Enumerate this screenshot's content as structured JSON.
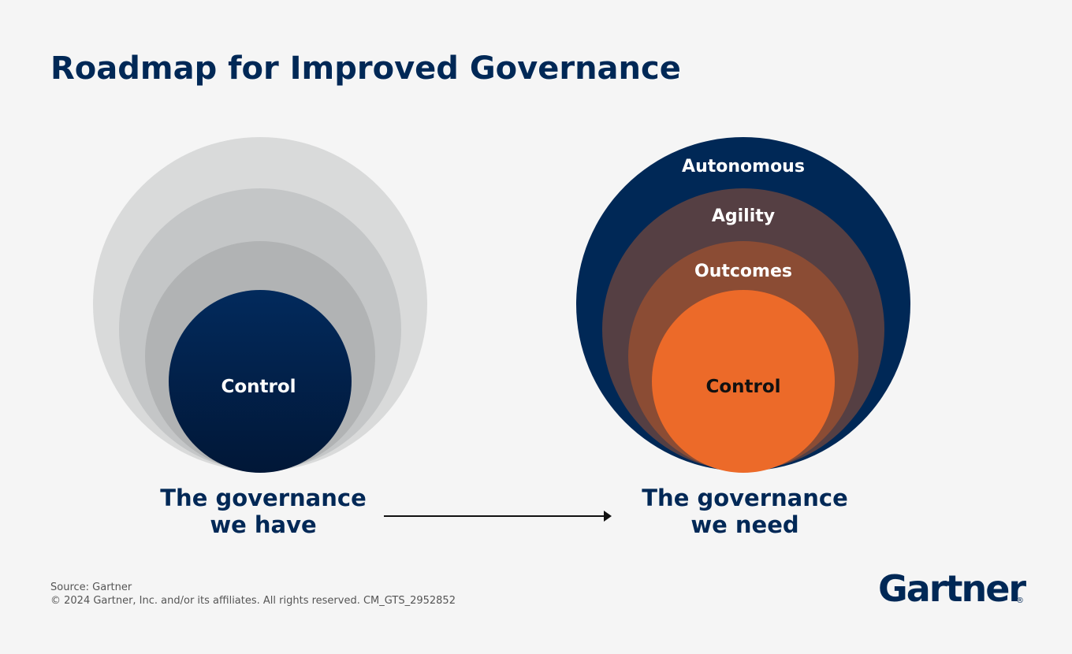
{
  "header": {
    "title": "Roadmap for Improved Governance"
  },
  "left": {
    "circles": [
      "Control"
    ],
    "caption": [
      "The governance",
      "we have"
    ]
  },
  "right": {
    "circles": [
      "Autonomous",
      "Agility",
      "Outcomes",
      "Control"
    ],
    "caption": [
      "The governance",
      "we need"
    ]
  },
  "footer": {
    "source": "Source: Gartner",
    "copyright": "© 2024 Gartner, Inc. and/or its affiliates. All rights reserved. CM_GTS_2952852",
    "logo": "Gartner",
    "logo_mark": "®"
  }
}
